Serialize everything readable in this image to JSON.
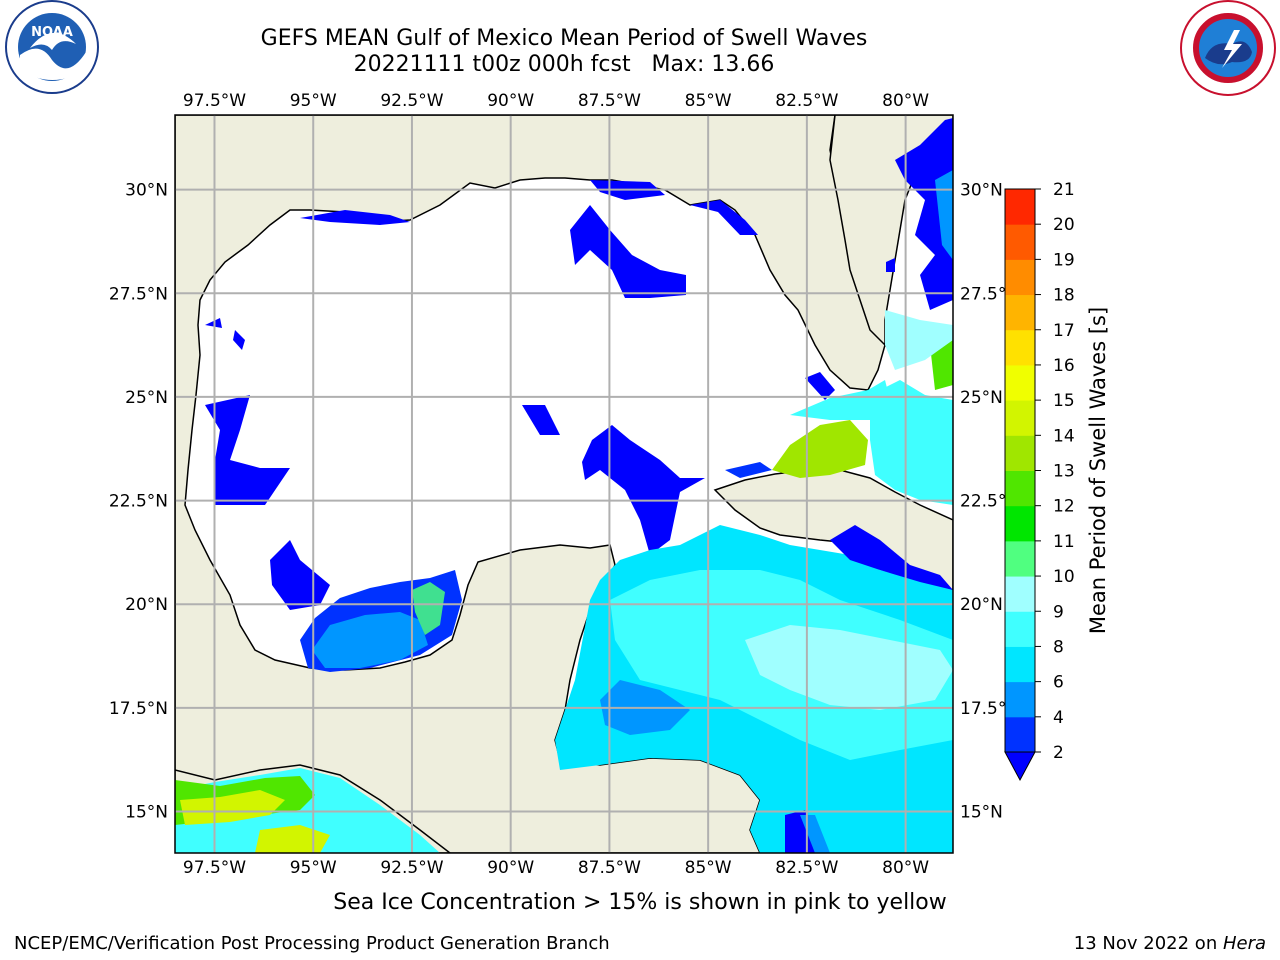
{
  "title": {
    "line1": "GEFS MEAN Gulf of Mexico Mean Period of Swell Waves",
    "line2": "20221111 t00z 000h fcst   Max: 13.66"
  },
  "map": {
    "lon_range": [
      -98.5,
      -78.8
    ],
    "lat_range": [
      14.0,
      31.8
    ],
    "lon_ticks": [
      "97.5°W",
      "95°W",
      "92.5°W",
      "90°W",
      "87.5°W",
      "85°W",
      "82.5°W",
      "80°W"
    ],
    "lat_ticks": [
      "15°N",
      "17.5°N",
      "20°N",
      "22.5°N",
      "25°N",
      "27.5°N",
      "30°N"
    ],
    "grid": true,
    "land_color": "#eeeedd",
    "ocean_color": "#ffffff"
  },
  "colorbar": {
    "label": "Mean Period of Swell Waves [s]",
    "ticks": [
      "2",
      "4",
      "6",
      "8",
      "9",
      "10",
      "11",
      "12",
      "13",
      "14",
      "15",
      "16",
      "17",
      "18",
      "19",
      "20",
      "21"
    ],
    "colors": [
      "#0032ff",
      "#0096ff",
      "#00e6ff",
      "#40ffff",
      "#a0ffff",
      "#50ff80",
      "#00e600",
      "#50e600",
      "#a0e600",
      "#d2f500",
      "#f0ff00",
      "#ffe100",
      "#ffb400",
      "#ff8c00",
      "#ff5a00",
      "#ff2800",
      "#ff0000"
    ],
    "extend_color": "#0000ff"
  },
  "footnote": "Sea Ice Concentration > 15% is shown in pink to yellow",
  "credit": "NCEP/EMC/Verification Post Processing Product Generation Branch",
  "datestamp": {
    "text": "13 Nov 2022 on ",
    "host": "Hera"
  },
  "logos": {
    "left_text": "NOAA",
    "right_text": "NATIONAL WEATHER SERVICE"
  }
}
